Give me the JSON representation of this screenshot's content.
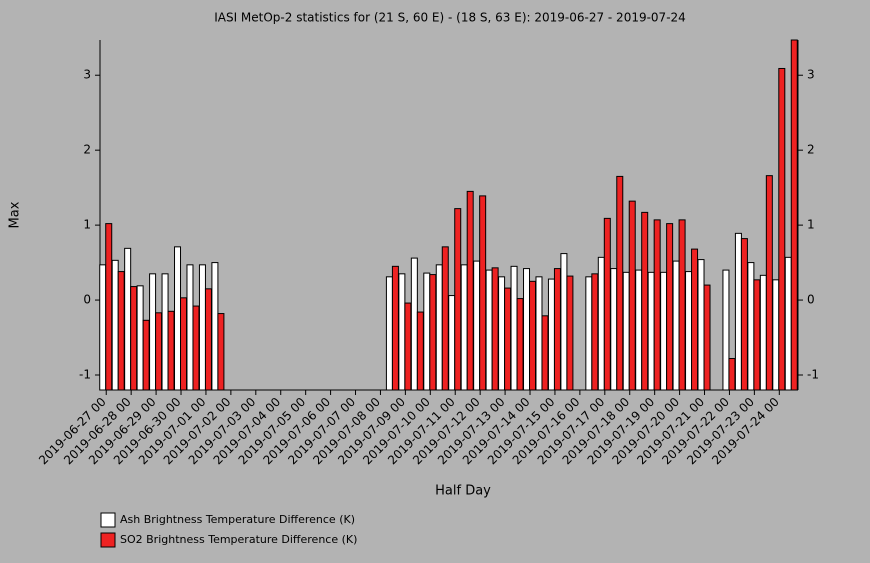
{
  "chart_data": {
    "type": "bar",
    "title": "IASI MetOp-2 statistics for (21 S, 60 E) - (18 S, 63 E): 2019-06-27 - 2019-07-24",
    "xlabel": "Half Day",
    "ylabel": "Max",
    "categories": [
      "2019-06-27 00",
      null,
      "2019-06-28 00",
      null,
      "2019-06-29 00",
      null,
      "2019-06-30 00",
      null,
      "2019-07-01 00",
      null,
      "2019-07-02 00",
      null,
      "2019-07-03 00",
      null,
      "2019-07-04 00",
      null,
      "2019-07-05 00",
      null,
      "2019-07-06 00",
      null,
      "2019-07-07 00",
      null,
      "2019-07-08 00",
      null,
      "2019-07-09 00",
      null,
      "2019-07-10 00",
      null,
      "2019-07-11 00",
      null,
      "2019-07-12 00",
      null,
      "2019-07-13 00",
      null,
      "2019-07-14 00",
      null,
      "2019-07-15 00",
      null,
      "2019-07-16 00",
      null,
      "2019-07-17 00",
      null,
      "2019-07-18 00",
      null,
      "2019-07-19 00",
      null,
      "2019-07-20 00",
      null,
      "2019-07-21 00",
      null,
      "2019-07-22 00",
      null,
      "2019-07-23 00",
      null,
      "2019-07-24 00",
      null
    ],
    "series": [
      {
        "name": "Ash Brightness Temperature Difference (K)",
        "color": "#ffffff",
        "values": [
          0.47,
          0.53,
          0.69,
          0.19,
          0.35,
          0.35,
          0.71,
          0.47,
          0.47,
          0.5,
          null,
          null,
          null,
          null,
          null,
          null,
          null,
          null,
          null,
          null,
          null,
          null,
          null,
          0.31,
          0.35,
          0.56,
          0.36,
          0.47,
          0.06,
          0.47,
          0.52,
          0.4,
          0.31,
          0.45,
          0.42,
          0.31,
          0.28,
          0.62,
          null,
          0.31,
          0.57,
          0.42,
          0.37,
          0.4,
          0.37,
          0.37,
          0.52,
          0.38,
          0.54,
          null,
          0.4,
          0.89,
          0.5,
          0.33,
          0.27,
          0.57
        ]
      },
      {
        "name": "SO2 Brightness Temperature Difference (K)",
        "color": "#ee2222",
        "values": [
          1.02,
          0.38,
          0.18,
          -0.27,
          -0.17,
          -0.15,
          0.03,
          -0.08,
          0.15,
          -0.18,
          null,
          null,
          null,
          null,
          null,
          null,
          null,
          null,
          null,
          null,
          null,
          null,
          null,
          0.45,
          -0.04,
          -0.16,
          0.34,
          0.71,
          1.22,
          1.45,
          1.39,
          0.43,
          0.16,
          0.02,
          0.25,
          -0.21,
          0.42,
          0.32,
          null,
          0.35,
          1.09,
          1.65,
          1.32,
          1.17,
          1.07,
          1.02,
          1.07,
          0.68,
          0.2,
          null,
          -0.78,
          0.82,
          0.27,
          1.66,
          3.09,
          3.47
        ]
      }
    ],
    "ylim": [
      -1.2,
      3.47
    ],
    "yticks": [
      -1,
      0,
      1,
      2,
      3
    ]
  }
}
